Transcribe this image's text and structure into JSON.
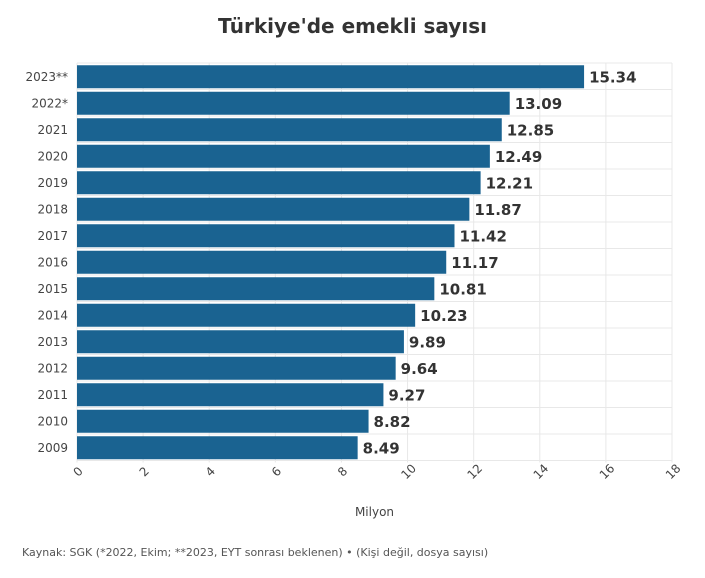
{
  "title": "Türkiye'de emekli sayısı",
  "source": "Kaynak: SGK (*2022, Ekim; **2023, EYT sonrası beklenen) • (Kişi değil, dosya sayısı)",
  "colors": {
    "bar": "#1a6391",
    "label": "#333333",
    "grid": "#e8e8e8",
    "tick": "#444444"
  },
  "chart_data": {
    "type": "bar",
    "orientation": "horizontal",
    "categories": [
      "2023**",
      "2022*",
      "2021",
      "2020",
      "2019",
      "2018",
      "2017",
      "2016",
      "2015",
      "2014",
      "2013",
      "2012",
      "2011",
      "2010",
      "2009"
    ],
    "values": [
      15.34,
      13.09,
      12.85,
      12.49,
      12.21,
      11.87,
      11.42,
      11.17,
      10.81,
      10.23,
      9.89,
      9.64,
      9.27,
      8.82,
      8.49
    ],
    "value_labels": [
      "15.34",
      "13.09",
      "12.85",
      "12.49",
      "12.21",
      "11.87",
      "11.42",
      "11.17",
      "10.81",
      "10.23",
      "9.89",
      "9.64",
      "9.27",
      "8.82",
      "8.49"
    ],
    "xlabel": "Milyon",
    "ylabel": "",
    "xlim": [
      0,
      18
    ],
    "xticks": [
      0,
      2,
      4,
      6,
      8,
      10,
      12,
      14,
      16,
      18
    ],
    "grid": true
  }
}
